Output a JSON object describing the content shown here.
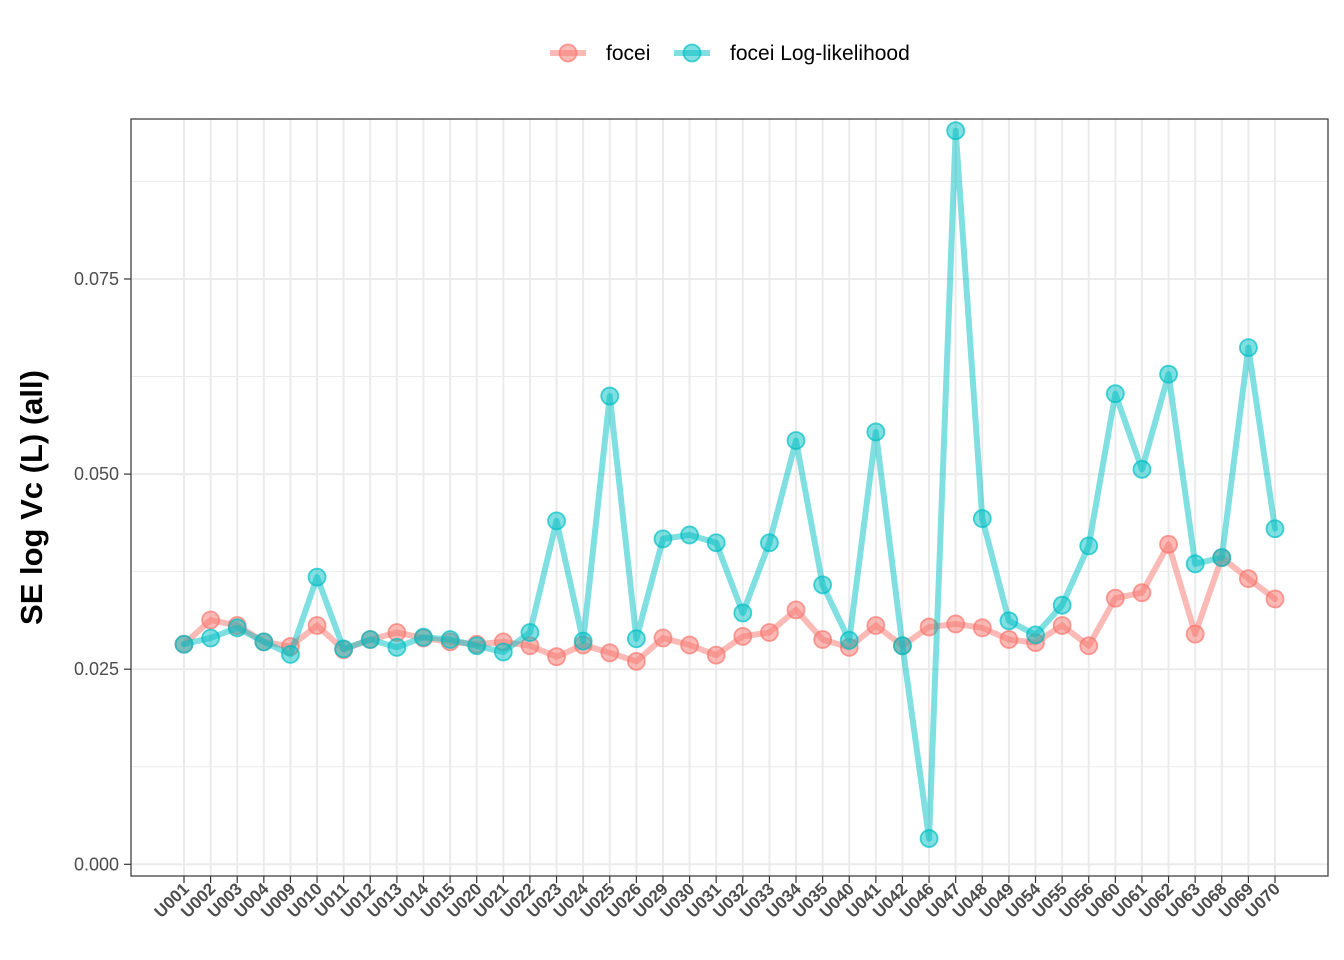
{
  "chart_data": {
    "type": "line",
    "title": "",
    "xlabel": "",
    "ylabel": "SE log Vc (L) (all)",
    "ylim": [
      -0.0015,
      0.0955
    ],
    "yticks": [
      0.0,
      0.025,
      0.05,
      0.075
    ],
    "ytick_labels": [
      "0.000",
      "0.025",
      "0.050",
      "0.075"
    ],
    "grid": true,
    "legend_position": "top",
    "categories": [
      "U001",
      "U002",
      "U003",
      "U004",
      "U009",
      "U010",
      "U011",
      "U012",
      "U013",
      "U014",
      "U015",
      "U020",
      "U021",
      "U022",
      "U023",
      "U024",
      "U025",
      "U026",
      "U029",
      "U030",
      "U031",
      "U032",
      "U033",
      "U034",
      "U035",
      "U040",
      "U041",
      "U042",
      "U046",
      "U047",
      "U048",
      "U049",
      "U054",
      "U055",
      "U056",
      "U060",
      "U061",
      "U062",
      "U063",
      "U068",
      "U069",
      "U070"
    ],
    "series": [
      {
        "name": "focei",
        "color": "#F8766D",
        "values": [
          0.0282,
          0.0313,
          0.0306,
          0.0285,
          0.0279,
          0.0306,
          0.0275,
          0.0288,
          0.0297,
          0.029,
          0.0285,
          0.0282,
          0.0285,
          0.028,
          0.0266,
          0.0281,
          0.0271,
          0.026,
          0.029,
          0.0281,
          0.0268,
          0.0292,
          0.0297,
          0.0326,
          0.0288,
          0.0278,
          0.0306,
          0.028,
          0.0304,
          0.0308,
          0.0303,
          0.0288,
          0.0284,
          0.0306,
          0.028,
          0.0341,
          0.0348,
          0.041,
          0.0295,
          0.0393,
          0.0366,
          0.034
        ]
      },
      {
        "name": "focei Log-likelihood",
        "color": "#00BFC4",
        "values": [
          0.0282,
          0.029,
          0.0303,
          0.0285,
          0.0269,
          0.0368,
          0.0276,
          0.0288,
          0.0278,
          0.0291,
          0.0288,
          0.028,
          0.0272,
          0.0297,
          0.044,
          0.0286,
          0.06,
          0.0289,
          0.0417,
          0.0422,
          0.0412,
          0.0322,
          0.0412,
          0.0543,
          0.0358,
          0.0287,
          0.0554,
          0.028,
          0.0033,
          0.094,
          0.0443,
          0.0312,
          0.0294,
          0.0332,
          0.0408,
          0.0603,
          0.0506,
          0.0628,
          0.0385,
          0.0393,
          0.0662,
          0.043
        ]
      }
    ]
  }
}
